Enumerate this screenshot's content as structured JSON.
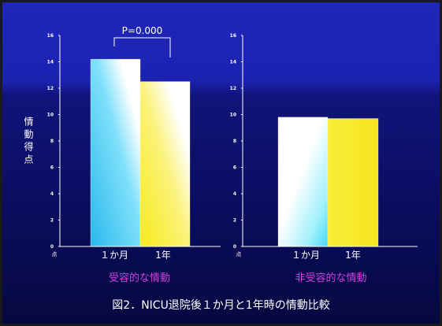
{
  "caption": "図2．NICU退院後１か月と1年時の情動比較",
  "ylabel": "情動得点",
  "colors": {
    "bar_month": "#3ec8f0",
    "bar_year": "#f7ea2a",
    "group_label": "#d040e0"
  },
  "chart_data": [
    {
      "type": "bar",
      "title": "受容的な情動",
      "categories": [
        "１か月",
        "1年"
      ],
      "values": [
        14.2,
        12.5
      ],
      "ylim": [
        0,
        16
      ],
      "yticks": [
        0,
        2,
        4,
        6,
        8,
        10,
        12,
        14,
        16
      ],
      "unit": "点",
      "annotation": "P=0.000"
    },
    {
      "type": "bar",
      "title": "非受容的な情動",
      "categories": [
        "１か月",
        "1年"
      ],
      "values": [
        9.8,
        9.7
      ],
      "ylim": [
        0,
        16
      ],
      "yticks": [
        0,
        2,
        4,
        6,
        8,
        10,
        12,
        14,
        16
      ],
      "unit": "点"
    }
  ]
}
